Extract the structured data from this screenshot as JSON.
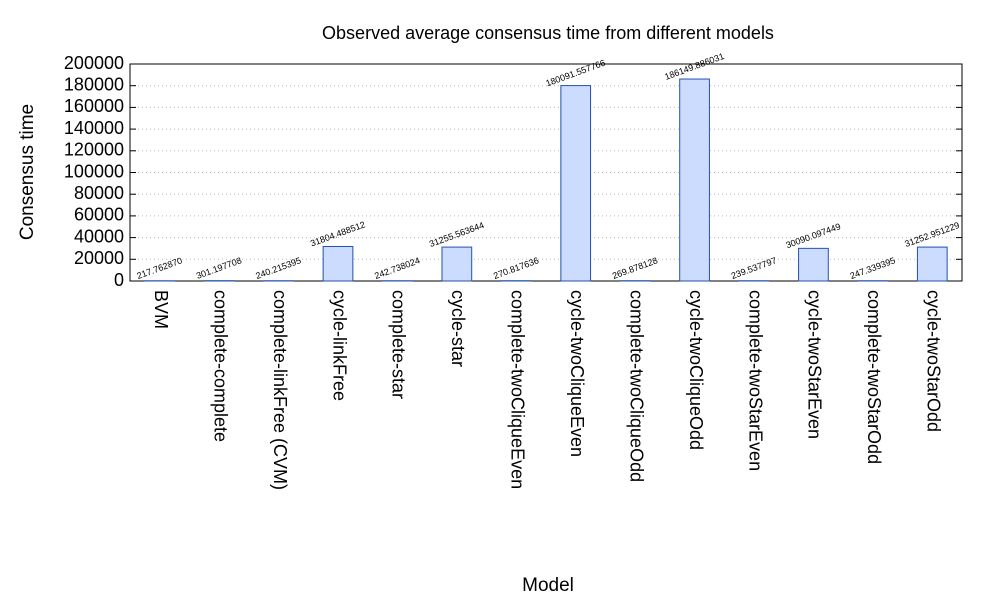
{
  "chart_data": {
    "type": "bar",
    "title": "Observed average consensus time from different models",
    "x_label": "Model",
    "y_label": "Consensus time",
    "categories": [
      "BVM",
      "complete-complete",
      "complete-linkFree (CVM)",
      "cycle-linkFree",
      "complete-star",
      "cycle-star",
      "complete-twoCliqueEven",
      "cycle-twoCliqueEven",
      "complete-twoCliqueOdd",
      "cycle-twoCliqueOdd",
      "complete-twoStarEven",
      "cycle-twoStarEven",
      "complete-twoStarOdd",
      "cycle-twoStarOdd"
    ],
    "values": [
      217.76287,
      301.197708,
      240.215395,
      31804.488512,
      242.738024,
      31255.563644,
      270.817636,
      180091.557766,
      269.878128,
      186149.886031,
      239.537797,
      30090.097449,
      247.339395,
      31252.951229
    ],
    "value_labels": [
      "217.762870",
      "301.197708",
      "240.215395",
      "31804.488512",
      "242.738024",
      "31255.563644",
      "270.817636",
      "180091.557766",
      "269.878128",
      "186149.886031",
      "239.537797",
      "30090.097449",
      "247.339395",
      "31252.951229"
    ],
    "color": "#ccdcff",
    "edge_color": "#2250b0",
    "ylim": [
      0,
      200000
    ],
    "yticks": [
      0,
      20000,
      40000,
      60000,
      80000,
      100000,
      120000,
      140000,
      160000,
      180000,
      200000
    ],
    "grid": true
  }
}
